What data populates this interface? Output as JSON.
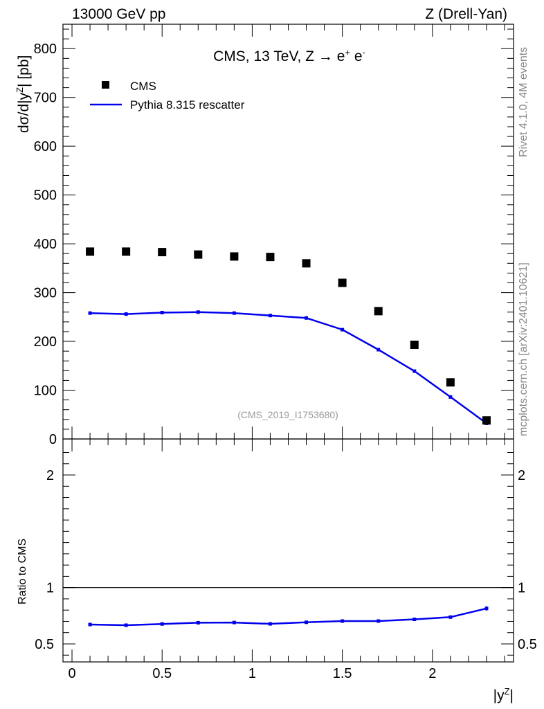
{
  "header": {
    "left": "13000 GeV pp",
    "right": "Z (Drell-Yan)"
  },
  "side_labels": {
    "rivet": "Rivet 4.1.0,  4M events",
    "mcplots": "mcplots.cern.ch [arXiv:2401.10621]"
  },
  "analysis_id": "(CMS_2019_I1753680)",
  "colors": {
    "data": "#000000",
    "mc": "#0000ee",
    "analysis_text": "#999999",
    "side_text": "#888888"
  },
  "chart_data": [
    {
      "type": "scatter",
      "panel": "main",
      "title_parts": {
        "prefix": "CMS, 13 TeV, Z →  e",
        "sup1": "+",
        "mid": " e",
        "sup2": "-"
      },
      "ylabel_parts": {
        "prefix": "dσ/d|y",
        "sup": "Z",
        "suffix": "| [pb]"
      },
      "xlim": [
        -0.05,
        2.45
      ],
      "ylim": [
        0,
        850
      ],
      "x_ticks": [
        0,
        0.5,
        1,
        1.5,
        2
      ],
      "y_ticks": [
        0,
        100,
        200,
        300,
        400,
        500,
        600,
        700,
        800
      ],
      "y_tick_labels": [
        "0",
        "100",
        "200",
        "300",
        "400",
        "500",
        "600",
        "700",
        "800"
      ],
      "legend": [
        {
          "name": "CMS",
          "marker": "square"
        },
        {
          "name": "Pythia 8.315 rescatter",
          "marker": "line"
        }
      ],
      "x": [
        0.1,
        0.3,
        0.5,
        0.7,
        0.9,
        1.1,
        1.3,
        1.5,
        1.7,
        1.9,
        2.1,
        2.3
      ],
      "series": [
        {
          "name": "CMS",
          "values": [
            384,
            384,
            383,
            378,
            374,
            373,
            360,
            320,
            262,
            193,
            116,
            38
          ]
        },
        {
          "name": "Pythia 8.315 rescatter",
          "values": [
            258,
            256,
            259,
            260,
            258,
            253,
            248,
            224,
            183,
            139,
            86,
            32
          ]
        }
      ]
    },
    {
      "type": "line",
      "panel": "ratio",
      "ylabel": "Ratio to CMS",
      "xlabel_parts": {
        "prefix": "|y",
        "sup": "Z",
        "suffix": "|"
      },
      "xlim": [
        -0.05,
        2.45
      ],
      "ylim": [
        0.34,
        2.32
      ],
      "x_ticks": [
        0,
        0.5,
        1,
        1.5,
        2
      ],
      "x_tick_labels": [
        "0",
        "0.5",
        "1",
        "1.5",
        "2"
      ],
      "y_ticks": [
        0.5,
        1,
        2
      ],
      "y_tick_labels": [
        "0.5",
        "1",
        "2"
      ],
      "reference_line": 1,
      "x": [
        0.1,
        0.3,
        0.5,
        0.7,
        0.9,
        1.1,
        1.3,
        1.5,
        1.7,
        1.9,
        2.1,
        2.3
      ],
      "series": [
        {
          "name": "Pythia 8.315 rescatter",
          "values": [
            0.672,
            0.666,
            0.677,
            0.688,
            0.69,
            0.678,
            0.692,
            0.703,
            0.703,
            0.718,
            0.738,
            0.815
          ],
          "errors": [
            0.006,
            0.006,
            0.006,
            0.006,
            0.006,
            0.006,
            0.006,
            0.006,
            0.006,
            0.008,
            0.01,
            0.02
          ]
        }
      ]
    }
  ]
}
